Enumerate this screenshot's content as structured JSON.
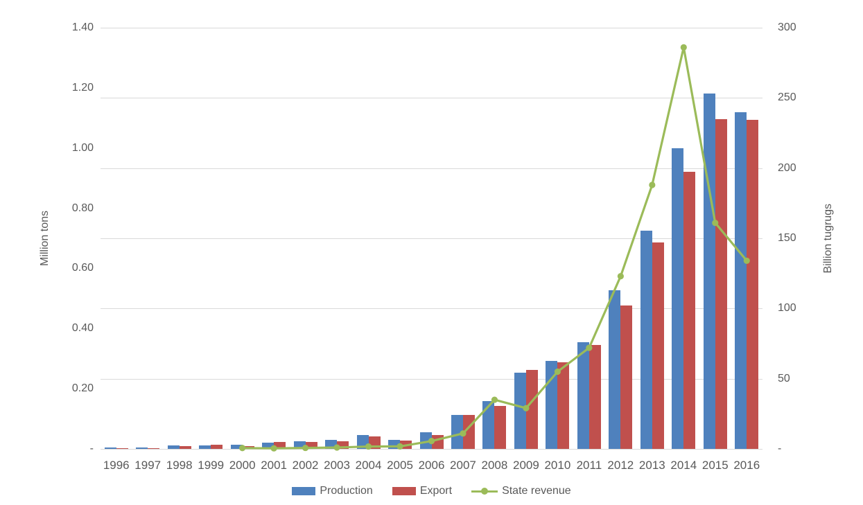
{
  "chart_data": {
    "type": "combo-bar-line",
    "title": "",
    "categories": [
      "1996",
      "1997",
      "1998",
      "1999",
      "2000",
      "2001",
      "2002",
      "2003",
      "2004",
      "2005",
      "2006",
      "2007",
      "2008",
      "2009",
      "2010",
      "2011",
      "2012",
      "2013",
      "2014",
      "2015",
      "2016"
    ],
    "series": [
      {
        "name": "Production",
        "type": "bar",
        "axis": "left",
        "color": "#4F81BD",
        "values": [
          0.004,
          0.005,
          0.011,
          0.012,
          0.015,
          0.021,
          0.025,
          0.03,
          0.047,
          0.03,
          0.055,
          0.114,
          0.16,
          0.254,
          0.292,
          0.354,
          0.527,
          0.726,
          1.0,
          1.181,
          1.119
        ]
      },
      {
        "name": "Export",
        "type": "bar",
        "axis": "left",
        "color": "#C0504D",
        "values": [
          0.002,
          0.002,
          0.009,
          0.013,
          0.01,
          0.022,
          0.023,
          0.025,
          0.042,
          0.027,
          0.046,
          0.112,
          0.143,
          0.263,
          0.287,
          0.345,
          0.477,
          0.686,
          0.922,
          1.097,
          1.094
        ]
      },
      {
        "name": "State revenue",
        "type": "line",
        "axis": "right",
        "color": "#9BBB59",
        "values": [
          null,
          null,
          null,
          null,
          0.6,
          0.4,
          0.7,
          1.0,
          1.7,
          1.8,
          5.6,
          11,
          35,
          29,
          55,
          72,
          123,
          188,
          286,
          161,
          134
        ]
      }
    ],
    "left_axis": {
      "title": "Million tons",
      "min": 0,
      "max": 1.4,
      "ticks": [
        {
          "label": "1.40",
          "value": 1.4
        },
        {
          "label": "1.20",
          "value": 1.2
        },
        {
          "label": "1.00",
          "value": 1.0
        },
        {
          "label": "0.80",
          "value": 0.8
        },
        {
          "label": "0.60",
          "value": 0.6
        },
        {
          "label": "0.40",
          "value": 0.4
        },
        {
          "label": "0.20",
          "value": 0.2
        },
        {
          "label": "-",
          "value": 0
        }
      ]
    },
    "right_axis": {
      "title": "Billion tugrugs",
      "min": 0,
      "max": 300,
      "ticks": [
        {
          "label": "300",
          "value": 300
        },
        {
          "label": "250",
          "value": 250
        },
        {
          "label": "200",
          "value": 200
        },
        {
          "label": "150",
          "value": 150
        },
        {
          "label": "100",
          "value": 100
        },
        {
          "label": "50",
          "value": 50
        },
        {
          "label": "-",
          "value": 0
        }
      ]
    },
    "grid": true,
    "legend_position": "bottom",
    "colors": {
      "grid": "#D9D9D9",
      "text": "#595959",
      "background": "#FFFFFF"
    }
  }
}
